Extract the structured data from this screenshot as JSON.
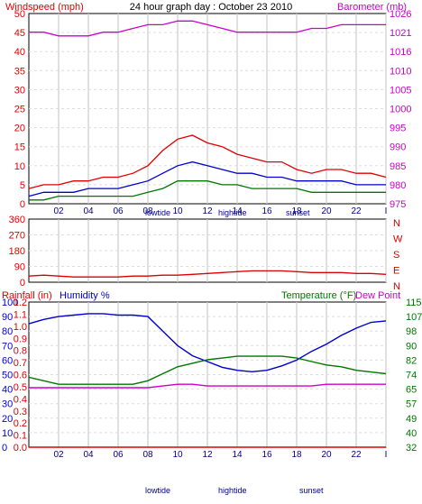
{
  "title": "24 hour graph day : October 23 2010",
  "colors": {
    "wind": "#e00000",
    "gust_avg": "#0000cc",
    "wind_low": "#007700",
    "baro": "#cc00cc",
    "dir": "#dd0000",
    "rain": "#dd0000",
    "humidity": "#0000cc",
    "temperature": "#007700",
    "dewpoint": "#cc00cc",
    "grid": "#cccccc"
  },
  "x_ticks": [
    "02",
    "04",
    "06",
    "08",
    "10",
    "12",
    "14",
    "16",
    "18",
    "20",
    "22",
    "I"
  ],
  "panel1": {
    "left_label": "Windspeed (mph)",
    "right_label": "Barometer (mb)",
    "left_ticks": [
      "0",
      "5",
      "10",
      "15",
      "20",
      "25",
      "30",
      "35",
      "40",
      "45",
      "50"
    ],
    "right_ticks": [
      "975",
      "980",
      "985",
      "990",
      "995",
      "1000",
      "1005",
      "1010",
      "1016",
      "1021",
      "1026"
    ],
    "markers": [
      "lowtide",
      "hightide",
      "sunset"
    ]
  },
  "panel2": {
    "left_ticks": [
      "0",
      "90",
      "180",
      "270",
      "360"
    ],
    "compass": [
      "N",
      "W",
      "S",
      "E",
      "N"
    ]
  },
  "panel3": {
    "rain_label": "Rainfall (in)",
    "humidity_label": "Humidity %",
    "temp_label": "Temperature (°F)",
    "dew_label": "Dew Point",
    "humidity_ticks": [
      "0",
      "10",
      "20",
      "30",
      "40",
      "50",
      "60",
      "70",
      "80",
      "90",
      "100"
    ],
    "rain_ticks": [
      "0.0",
      "0.1",
      "0.2",
      "0.3",
      "0.4",
      "0.5",
      "0.6",
      "0.7",
      "0.8",
      "0.9",
      "1.0",
      "1.1",
      "1.2"
    ],
    "temp_ticks": [
      "32",
      "40",
      "49",
      "57",
      "65",
      "74",
      "82",
      "90",
      "98",
      "107",
      "115"
    ],
    "markers": [
      "lowtide",
      "hightide",
      "sunset"
    ]
  },
  "chart_data": [
    {
      "type": "line",
      "title": "24 hour graph day : October 23 2010",
      "x": [
        0,
        1,
        2,
        3,
        4,
        5,
        6,
        7,
        8,
        9,
        10,
        11,
        12,
        13,
        14,
        15,
        16,
        17,
        18,
        19,
        20,
        21,
        22,
        23,
        24
      ],
      "ylabel": "Windspeed (mph)",
      "ylim": [
        0,
        50
      ],
      "y2label": "Barometer (mb)",
      "y2lim": [
        975,
        1026
      ],
      "series": [
        {
          "values": [
            4,
            5,
            5,
            6,
            6,
            7,
            7,
            8,
            10,
            14,
            17,
            18,
            16,
            15,
            13,
            12,
            11,
            11,
            9,
            8,
            9,
            9,
            8,
            8,
            7
          ]
        },
        {
          "values": [
            2,
            3,
            3,
            3,
            4,
            4,
            4,
            5,
            6,
            8,
            10,
            11,
            10,
            9,
            8,
            8,
            7,
            7,
            6,
            6,
            6,
            6,
            5,
            5,
            5
          ]
        },
        {
          "values": [
            1,
            1,
            2,
            2,
            2,
            2,
            2,
            2,
            3,
            4,
            6,
            6,
            6,
            5,
            5,
            4,
            4,
            4,
            4,
            3,
            3,
            3,
            3,
            3,
            3
          ]
        },
        {
          "axis": "right",
          "values": [
            1021,
            1021,
            1020,
            1020,
            1020,
            1021,
            1021,
            1022,
            1023,
            1023,
            1024,
            1024,
            1023,
            1022,
            1021,
            1021,
            1021,
            1021,
            1021,
            1022,
            1022,
            1023,
            1023,
            1023,
            1023
          ]
        }
      ]
    },
    {
      "type": "scatter",
      "x": [
        0,
        1,
        2,
        3,
        4,
        5,
        6,
        7,
        8,
        9,
        10,
        11,
        12,
        13,
        14,
        15,
        16,
        17,
        18,
        19,
        20,
        21,
        22,
        23,
        24
      ],
      "ylim": [
        0,
        360
      ],
      "series": [
        {
          "values": [
            35,
            40,
            35,
            30,
            30,
            30,
            30,
            35,
            35,
            40,
            40,
            45,
            50,
            55,
            60,
            65,
            65,
            65,
            60,
            55,
            55,
            55,
            50,
            50,
            45
          ]
        }
      ]
    },
    {
      "type": "line",
      "x": [
        0,
        1,
        2,
        3,
        4,
        5,
        6,
        7,
        8,
        9,
        10,
        11,
        12,
        13,
        14,
        15,
        16,
        17,
        18,
        19,
        20,
        21,
        22,
        23,
        24
      ],
      "y_left_label": "Humidity %",
      "ylim": [
        0,
        100
      ],
      "y_rain_label": "Rainfall (in)",
      "y_rain_lim": [
        0.0,
        1.2
      ],
      "y_right_label": "Temperature (°F)",
      "y2lim": [
        32,
        115
      ],
      "series": [
        {
          "axis": "left",
          "values": [
            85,
            88,
            90,
            91,
            92,
            92,
            91,
            91,
            90,
            80,
            70,
            63,
            59,
            55,
            53,
            52,
            53,
            56,
            60,
            66,
            71,
            77,
            82,
            86,
            87
          ]
        },
        {
          "axis": "rain",
          "values": [
            0,
            0,
            0,
            0,
            0,
            0,
            0,
            0,
            0,
            0,
            0,
            0,
            0,
            0,
            0,
            0,
            0,
            0,
            0,
            0,
            0,
            0,
            0,
            0,
            0
          ]
        },
        {
          "axis": "right",
          "values": [
            72,
            70,
            68,
            68,
            68,
            68,
            68,
            68,
            70,
            74,
            78,
            80,
            82,
            83,
            84,
            84,
            84,
            84,
            83,
            81,
            79,
            78,
            76,
            75,
            74
          ]
        },
        {
          "axis": "right",
          "values": [
            66,
            66,
            66,
            66,
            66,
            66,
            66,
            66,
            66,
            67,
            68,
            68,
            67,
            67,
            67,
            67,
            67,
            67,
            67,
            67,
            68,
            68,
            68,
            68,
            68
          ]
        }
      ]
    }
  ]
}
